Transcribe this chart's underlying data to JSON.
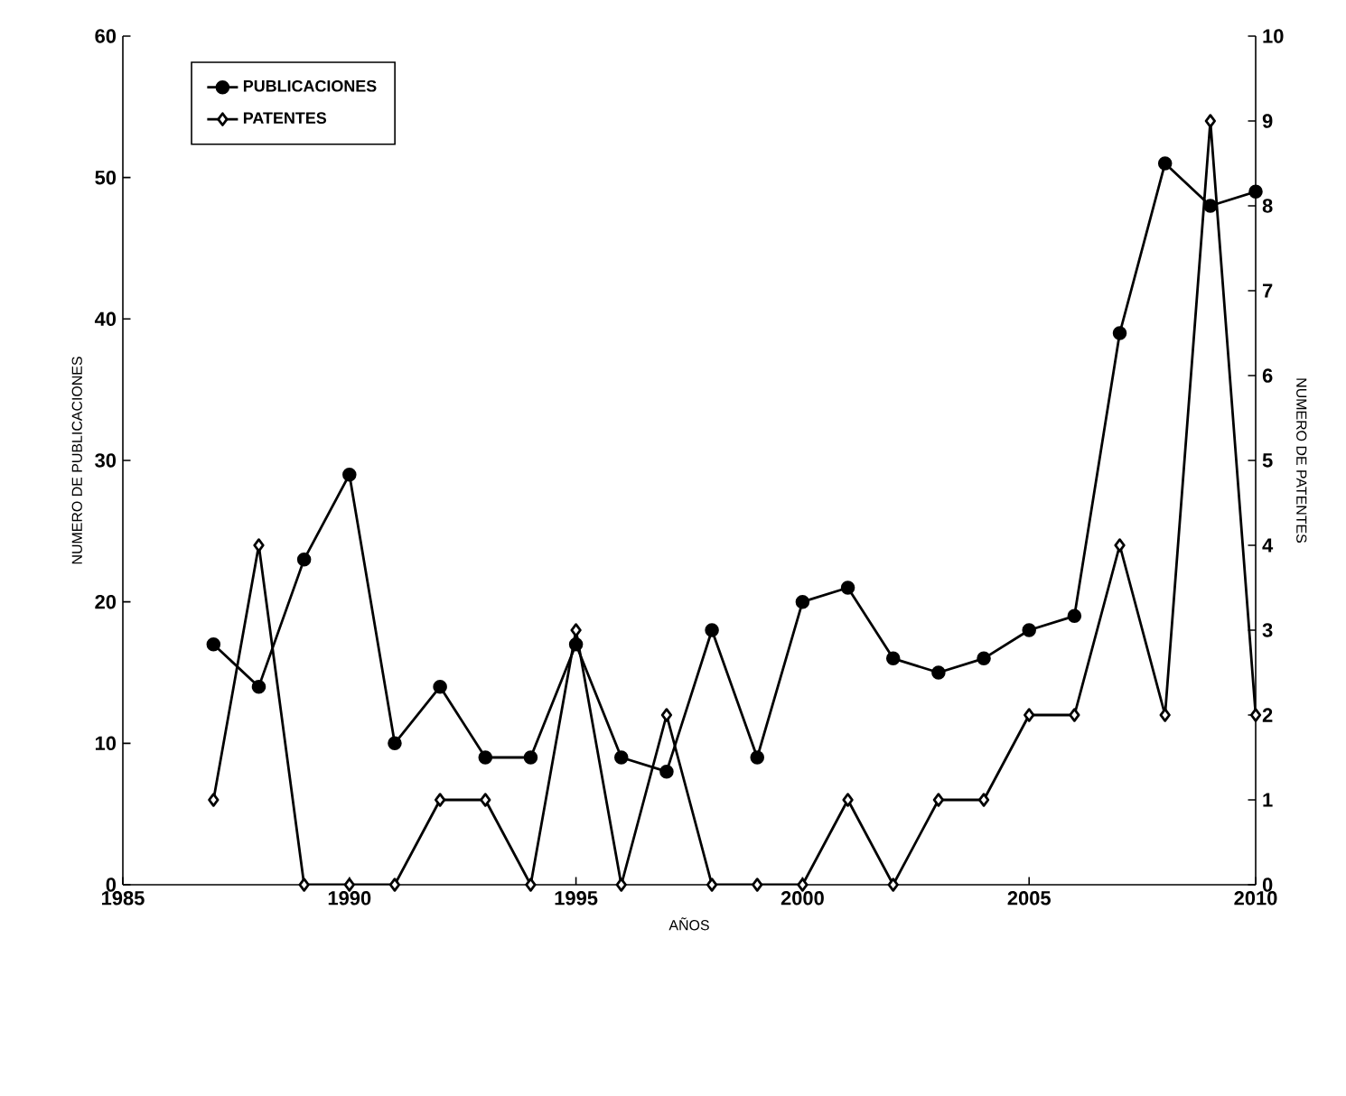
{
  "chart_data": {
    "type": "line",
    "xlabel": "AÑOS",
    "ylabel": "NUMERO DE PUBLICACIONES",
    "y2label": "NUMERO DE PATENTES",
    "x": [
      1987,
      1988,
      1989,
      1990,
      1991,
      1992,
      1993,
      1994,
      1995,
      1996,
      1997,
      1998,
      1999,
      2000,
      2001,
      2002,
      2003,
      2004,
      2005,
      2006,
      2007,
      2008,
      2009,
      2010
    ],
    "series": [
      {
        "name": "PUBLICACIONES",
        "color": "#000000",
        "marker": "circle",
        "values": [
          17,
          14,
          23,
          29,
          10,
          14,
          9,
          9,
          17,
          9,
          8,
          18,
          9,
          20,
          21,
          16,
          15,
          16,
          18,
          19,
          39,
          51,
          48,
          49
        ]
      },
      {
        "name": "PATENTES",
        "color": "#000000",
        "marker": "diamond",
        "axis": "y2",
        "values": [
          1,
          4,
          0,
          0,
          0,
          1,
          1,
          0,
          3,
          0,
          2,
          0,
          0,
          0,
          1,
          0,
          1,
          1,
          2,
          2,
          4,
          2,
          9,
          2
        ]
      }
    ],
    "xlim": [
      1985,
      2010
    ],
    "xticks": [
      1985,
      1990,
      1995,
      2000,
      2005,
      2010
    ],
    "ylim": [
      0,
      60
    ],
    "yticks": [
      0,
      10,
      20,
      30,
      40,
      50,
      60
    ],
    "y2lim": [
      0,
      10
    ],
    "y2ticks": [
      0,
      1,
      2,
      3,
      4,
      5,
      6,
      7,
      8,
      9,
      10
    ],
    "legend": "top left",
    "grid": false
  }
}
